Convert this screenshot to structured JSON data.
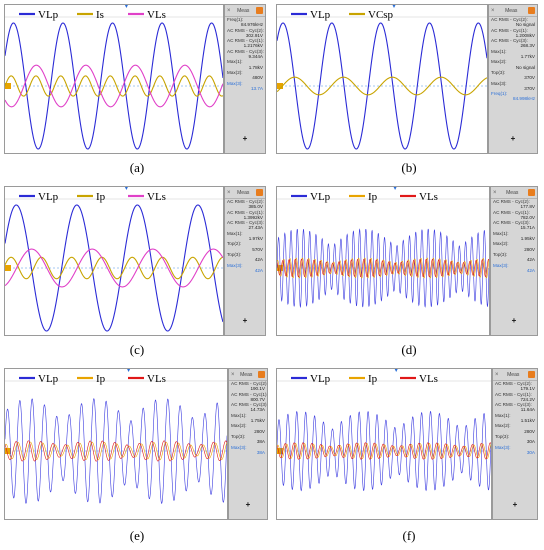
{
  "figure": {
    "panels": [
      {
        "caption": "(a)",
        "legend": [
          {
            "name": "VLp",
            "color": "#2b2bd6"
          },
          {
            "name": "Is",
            "color": "#c8a400"
          },
          {
            "name": "VLs",
            "color": "#e040c8"
          }
        ],
        "meas_title": "Meas",
        "meas_rows": [
          {
            "t": "Freq(1):",
            "c": "l"
          },
          {
            "t": "84.976kHz",
            "c": "v"
          },
          {
            "t": "AC RMS - Cyc(2):",
            "c": "l"
          },
          {
            "t": "302.91V",
            "c": "v"
          },
          {
            "t": "AC RMS - Cyc(1):",
            "c": "l"
          },
          {
            "t": "1.2176kV",
            "c": "v"
          },
          {
            "t": "AC RMS - Cyc(3):",
            "c": "l"
          },
          {
            "t": "9.344A",
            "c": "v"
          },
          {
            "t": "Max(1):",
            "c": "l"
          },
          {
            "t": "1.78kV",
            "c": "v"
          },
          {
            "t": "Max(2):",
            "c": "l"
          },
          {
            "t": "480V",
            "c": "v"
          },
          {
            "t": "Max(3):",
            "c": "l blue"
          },
          {
            "t": "13.7A",
            "c": "v blue"
          }
        ],
        "plus": "+"
      },
      {
        "caption": "(b)",
        "legend": [
          {
            "name": "VLp",
            "color": "#2b2bd6"
          },
          {
            "name": "VCsp",
            "color": "#c8a400"
          }
        ],
        "meas_title": "Meas",
        "meas_rows": [
          {
            "t": "AC RMS - Cyc(2):",
            "c": "l"
          },
          {
            "t": "No signal",
            "c": "v"
          },
          {
            "t": "AC RMS - Cyc(1):",
            "c": "l"
          },
          {
            "t": "1.2008kV",
            "c": "v"
          },
          {
            "t": "AC RMS - Cyc(3):",
            "c": "l"
          },
          {
            "t": "268.3V",
            "c": "v"
          },
          {
            "t": "Max(1):",
            "c": "l"
          },
          {
            "t": "1.77kV",
            "c": "v"
          },
          {
            "t": "Max(2):",
            "c": "l"
          },
          {
            "t": "No signal",
            "c": "v"
          },
          {
            "t": "Top(3):",
            "c": "l"
          },
          {
            "t": "370V",
            "c": "v"
          },
          {
            "t": "Max(3):",
            "c": "l"
          },
          {
            "t": "370V",
            "c": "v"
          },
          {
            "t": "Freq(1):",
            "c": "l blue"
          },
          {
            "t": "84.998kHz",
            "c": "v blue"
          }
        ],
        "plus": "+"
      },
      {
        "caption": "(c)",
        "legend": [
          {
            "name": "VLp",
            "color": "#2b2bd6"
          },
          {
            "name": "Ip",
            "color": "#c8a400"
          },
          {
            "name": "VLs",
            "color": "#e040c8"
          }
        ],
        "meas_title": "Meas",
        "meas_rows": [
          {
            "t": "AC RMS - Cyc(2):",
            "c": "l"
          },
          {
            "t": "385.0V",
            "c": "v"
          },
          {
            "t": "AC RMS - Cyc(1):",
            "c": "l"
          },
          {
            "t": "1.3992kV",
            "c": "v"
          },
          {
            "t": "AC RMS - Cyc(3):",
            "c": "l"
          },
          {
            "t": "27.43A",
            "c": "v"
          },
          {
            "t": "Max(1):",
            "c": "l"
          },
          {
            "t": "1.97kV",
            "c": "v"
          },
          {
            "t": "Top(2):",
            "c": "l"
          },
          {
            "t": "570V",
            "c": "v"
          },
          {
            "t": "Top(3):",
            "c": "l"
          },
          {
            "t": "42A",
            "c": "v"
          },
          {
            "t": "Max(3):",
            "c": "l blue"
          },
          {
            "t": "42A",
            "c": "v blue"
          }
        ],
        "plus": "+"
      },
      {
        "caption": "(d)",
        "legend": [
          {
            "name": "VLp",
            "color": "#2b2bd6"
          },
          {
            "name": "Ip",
            "color": "#e8a400"
          },
          {
            "name": "VLs",
            "color": "#e01818"
          }
        ],
        "meas_title": "Meas",
        "meas_rows": [
          {
            "t": "AC RMS - Cyc(2):",
            "c": "l"
          },
          {
            "t": "177.8V",
            "c": "v"
          },
          {
            "t": "AC RMS - Cyc(1):",
            "c": "l"
          },
          {
            "t": "782.0V",
            "c": "v"
          },
          {
            "t": "AC RMS - Cyc(3):",
            "c": "l"
          },
          {
            "t": "15.71A",
            "c": "v"
          },
          {
            "t": "Max(1):",
            "c": "l"
          },
          {
            "t": "1.95kV",
            "c": "v"
          },
          {
            "t": "Max(2):",
            "c": "l"
          },
          {
            "t": "280V",
            "c": "v"
          },
          {
            "t": "Top(3):",
            "c": "l"
          },
          {
            "t": "42A",
            "c": "v"
          },
          {
            "t": "Max(3):",
            "c": "l blue"
          },
          {
            "t": "42A",
            "c": "v blue"
          }
        ],
        "plus": "+"
      },
      {
        "caption": "(e)",
        "legend": [
          {
            "name": "VLp",
            "color": "#2b2bd6"
          },
          {
            "name": "Ip",
            "color": "#e8a400"
          },
          {
            "name": "VLs",
            "color": "#e01818"
          }
        ],
        "meas_title": "Meas",
        "meas_rows": [
          {
            "t": "AC RMS - Cyc(2):",
            "c": "l"
          },
          {
            "t": "190.1V",
            "c": "v"
          },
          {
            "t": "AC RMS - Cyc(1):",
            "c": "l"
          },
          {
            "t": "800.7V",
            "c": "v"
          },
          {
            "t": "AC RMS - Cyc(3):",
            "c": "l"
          },
          {
            "t": "14.73A",
            "c": "v"
          },
          {
            "t": "Max(1):",
            "c": "l"
          },
          {
            "t": "1.75kV",
            "c": "v"
          },
          {
            "t": "Max(2):",
            "c": "l"
          },
          {
            "t": "280V",
            "c": "v"
          },
          {
            "t": "Top(3):",
            "c": "l"
          },
          {
            "t": "38A",
            "c": "v"
          },
          {
            "t": "Max(3):",
            "c": "l blue"
          },
          {
            "t": "38A",
            "c": "v blue"
          }
        ],
        "plus": "+"
      },
      {
        "caption": "(f)",
        "legend": [
          {
            "name": "VLp",
            "color": "#2b2bd6"
          },
          {
            "name": "Ip",
            "color": "#e8a400"
          },
          {
            "name": "VLs",
            "color": "#e01818"
          }
        ],
        "meas_title": "Meas",
        "meas_rows": [
          {
            "t": "AC RMS - Cyc(2):",
            "c": "l"
          },
          {
            "t": "179.1V",
            "c": "v"
          },
          {
            "t": "AC RMS - Cyc(1):",
            "c": "l"
          },
          {
            "t": "724.2V",
            "c": "v"
          },
          {
            "t": "AC RMS - Cyc(3):",
            "c": "l"
          },
          {
            "t": "11.64A",
            "c": "v"
          },
          {
            "t": "Max(1):",
            "c": "l"
          },
          {
            "t": "1.51kV",
            "c": "v"
          },
          {
            "t": "Max(2):",
            "c": "l"
          },
          {
            "t": "280V",
            "c": "v"
          },
          {
            "t": "Top(3):",
            "c": "l"
          },
          {
            "t": "30A",
            "c": "v"
          },
          {
            "t": "Max(3):",
            "c": "l blue"
          },
          {
            "t": "30A",
            "c": "v blue"
          }
        ],
        "plus": "+"
      }
    ]
  },
  "chart_data": [
    {
      "type": "line",
      "mode": "continuous",
      "series": [
        {
          "name": "VLp",
          "color": "#2b2bd6",
          "cycles": 4.4,
          "amplitude": 1.0,
          "phase": 0.5
        },
        {
          "name": "Is",
          "color": "#c8a400",
          "cycles": 8.8,
          "amplitude": 0.16,
          "phase": 0.0
        },
        {
          "name": "VLs",
          "color": "#e040c8",
          "cycles": 4.4,
          "amplitude": 0.33,
          "phase": -2.4
        }
      ]
    },
    {
      "type": "line",
      "mode": "continuous",
      "series": [
        {
          "name": "VLp",
          "color": "#2b2bd6",
          "cycles": 4.3,
          "amplitude": 1.0,
          "phase": 0.8
        },
        {
          "name": "VCsp",
          "color": "#c8a400",
          "cycles": 4.3,
          "amplitude": 0.14,
          "phase": -0.7
        }
      ]
    },
    {
      "type": "line",
      "mode": "continuous",
      "series": [
        {
          "name": "VLp",
          "color": "#2b2bd6",
          "cycles": 3.6,
          "amplitude": 1.0,
          "phase": 0.4
        },
        {
          "name": "Ip",
          "color": "#c8a400",
          "cycles": 7.2,
          "amplitude": 0.17,
          "phase": 0.3
        },
        {
          "name": "VLs",
          "color": "#e040c8",
          "cycles": 3.6,
          "amplitude": 0.3,
          "phase": -1.2
        }
      ]
    },
    {
      "type": "line",
      "mode": "burst",
      "series": [
        {
          "name": "VLp",
          "color": "#3a3ae0",
          "cycles": 34,
          "amplitude": 0.62,
          "phase": 0.0
        },
        {
          "name": "Ip",
          "color": "#e8a400",
          "cycles": 34,
          "amplitude": 0.16,
          "phase": 1.0
        },
        {
          "name": "VLs",
          "color": "#e01818",
          "cycles": 34,
          "amplitude": 0.14,
          "phase": 2.0
        }
      ]
    },
    {
      "type": "line",
      "mode": "burst",
      "series": [
        {
          "name": "VLp",
          "color": "#3a3ae0",
          "cycles": 18,
          "amplitude": 0.82,
          "phase": 0.3
        },
        {
          "name": "Ip",
          "color": "#e8a400",
          "cycles": 18,
          "amplitude": 0.14,
          "phase": 1.2
        },
        {
          "name": "VLs",
          "color": "#e01818",
          "cycles": 18,
          "amplitude": 0.16,
          "phase": 2.2
        }
      ]
    },
    {
      "type": "line",
      "mode": "burst",
      "series": [
        {
          "name": "VLp",
          "color": "#3a3ae0",
          "cycles": 24,
          "amplitude": 0.62,
          "phase": 0.2
        },
        {
          "name": "Ip",
          "color": "#e8a400",
          "cycles": 24,
          "amplitude": 0.12,
          "phase": 1.1
        },
        {
          "name": "VLs",
          "color": "#e01818",
          "cycles": 24,
          "amplitude": 0.13,
          "phase": 2.1
        }
      ]
    }
  ]
}
